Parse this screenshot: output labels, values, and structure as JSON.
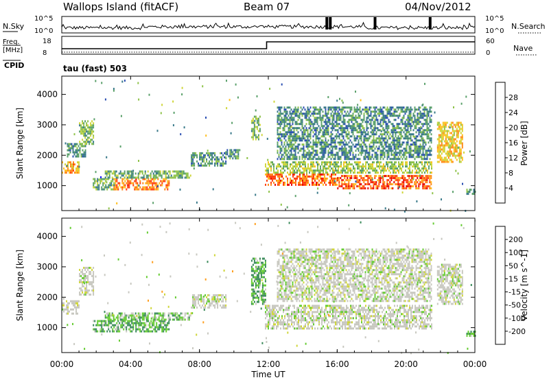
{
  "header": {
    "station": "Wallops Island (fitACF)",
    "beam": "Beam 07",
    "date": "04/Nov/2012"
  },
  "noise_panel": {
    "left_label": "N.Sky",
    "right_label": "N.Search",
    "left_ticks": [
      "10^5",
      "10^0"
    ],
    "right_ticks": [
      "10^5",
      "10^0"
    ]
  },
  "freq_panel": {
    "left_label_1": "Freq.",
    "left_label_2": "[MHz]",
    "left_ticks": [
      "18",
      "8"
    ],
    "right_label": "Nave",
    "right_ticks": [
      "60",
      "0"
    ],
    "cpid_label": "CPID",
    "cpid_value": "tau (fast) 503",
    "freq_steps": [
      {
        "t": 0,
        "mhz": 10.5
      },
      {
        "t": 11.9,
        "mhz": 10.5
      },
      {
        "t": 11.9,
        "mhz": 15.5
      },
      {
        "t": 24,
        "mhz": 15.5
      }
    ]
  },
  "time_axis": {
    "label": "Time UT",
    "ticks": [
      "00:00",
      "04:00",
      "08:00",
      "12:00",
      "16:00",
      "20:00",
      "00:00"
    ]
  },
  "chart_data": [
    {
      "type": "heatmap",
      "quantity": "Power",
      "ylabel": "Slant Range [km]",
      "yticks": [
        1000,
        2000,
        3000,
        4000
      ],
      "ylim": [
        180,
        4600
      ],
      "xlim_hours": [
        0,
        24
      ],
      "colorbar_label": "Power [dB]",
      "colorbar_ticks": [
        "28",
        "24",
        "20",
        "16",
        "12",
        "8",
        "4"
      ],
      "colorbar_range": [
        0,
        32
      ],
      "colors": [
        "#1a1aff",
        "#2b4fb2",
        "#3a7a8a",
        "#5aa06a",
        "#8fc34a",
        "#cfd63a",
        "#ffc020",
        "#ff8a1a",
        "#ff4010",
        "#e80000"
      ],
      "regions": [
        {
          "t": [
            0,
            1.0
          ],
          "r": [
            1450,
            1800
          ],
          "db": 22
        },
        {
          "t": [
            0.3,
            1.4
          ],
          "r": [
            1950,
            2400
          ],
          "db": 10
        },
        {
          "t": [
            1.0,
            1.8
          ],
          "r": [
            2400,
            3150
          ],
          "db": 13
        },
        {
          "t": [
            1.8,
            3.0
          ],
          "r": [
            850,
            1250
          ],
          "db": 12
        },
        {
          "t": [
            3.0,
            6.2
          ],
          "r": [
            850,
            1250
          ],
          "db": 25
        },
        {
          "t": [
            2.5,
            7.5
          ],
          "r": [
            1250,
            1500
          ],
          "db": 12
        },
        {
          "t": [
            7.5,
            9.5
          ],
          "r": [
            1650,
            2100
          ],
          "db": 9
        },
        {
          "t": [
            9.5,
            10.3
          ],
          "r": [
            1900,
            2200
          ],
          "db": 8
        },
        {
          "t": [
            11.0,
            11.5
          ],
          "r": [
            2500,
            3300
          ],
          "db": 13
        },
        {
          "t": [
            11.8,
            16.0
          ],
          "r": [
            1000,
            1400
          ],
          "db": 26
        },
        {
          "t": [
            16.0,
            21.5
          ],
          "r": [
            900,
            1350
          ],
          "db": 27
        },
        {
          "t": [
            11.8,
            21.5
          ],
          "r": [
            1400,
            1800
          ],
          "db": 15
        },
        {
          "t": [
            12.5,
            21.5
          ],
          "r": [
            1900,
            3600
          ],
          "db": 9
        },
        {
          "t": [
            21.8,
            23.3
          ],
          "r": [
            1800,
            3100
          ],
          "db": 20
        },
        {
          "t": [
            23.5,
            24.0
          ],
          "r": [
            700,
            900
          ],
          "db": 10
        }
      ]
    },
    {
      "type": "heatmap",
      "quantity": "Velocity",
      "ylabel": "Slant Range [km]",
      "yticks": [
        1000,
        2000,
        3000,
        4000
      ],
      "ylim": [
        180,
        4600
      ],
      "xlim_hours": [
        0,
        24
      ],
      "colorbar_label": "Velocity [m s^-1]",
      "colorbar_ticks": [
        "200",
        "100",
        "50",
        "15",
        "-15",
        "-50",
        "-100",
        "-200"
      ],
      "colors": [
        "#1a1aff",
        "#2b5fa8",
        "#3a8a5a",
        "#66cc33",
        "#c8c8c0",
        "#cfd63a",
        "#ffa020",
        "#ff6010",
        "#e80000"
      ],
      "regions": [
        {
          "t": [
            0,
            1.0
          ],
          "r": [
            1450,
            1900
          ],
          "v": 0
        },
        {
          "t": [
            1.0,
            1.8
          ],
          "r": [
            2100,
            3000
          ],
          "v": 0
        },
        {
          "t": [
            1.8,
            6.2
          ],
          "r": [
            850,
            1250
          ],
          "v": 30
        },
        {
          "t": [
            2.5,
            7.5
          ],
          "r": [
            1250,
            1500
          ],
          "v": 20
        },
        {
          "t": [
            7.5,
            9.5
          ],
          "r": [
            1650,
            2100
          ],
          "v": 0
        },
        {
          "t": [
            11.0,
            11.8
          ],
          "r": [
            1800,
            3300
          ],
          "v": 30
        },
        {
          "t": [
            11.8,
            21.5
          ],
          "r": [
            950,
            1750
          ],
          "v": 0
        },
        {
          "t": [
            12.5,
            21.5
          ],
          "r": [
            1900,
            3600
          ],
          "v": 0
        },
        {
          "t": [
            21.8,
            23.3
          ],
          "r": [
            1800,
            3100
          ],
          "v": 0
        },
        {
          "t": [
            23.5,
            24.0
          ],
          "r": [
            700,
            900
          ],
          "v": 30
        }
      ]
    }
  ]
}
